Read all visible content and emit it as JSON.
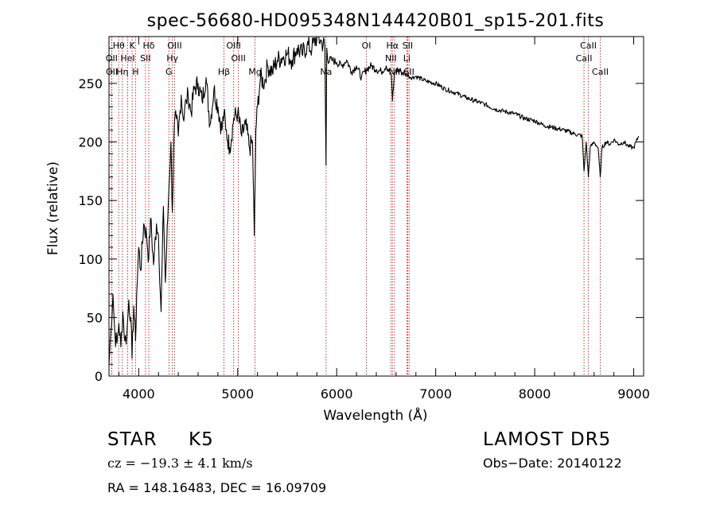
{
  "chart_data": {
    "type": "line",
    "title": "spec-56680-HD095348N144420B01_sp15-201.fits",
    "xlabel": "Wavelength (Å)",
    "ylabel": "Flux (relative)",
    "xlim": [
      3700,
      9100
    ],
    "ylim": [
      0,
      290
    ],
    "x_ticks": [
      4000,
      5000,
      6000,
      7000,
      8000,
      9000
    ],
    "y_ticks": [
      0,
      50,
      100,
      150,
      200,
      250
    ],
    "grid": false,
    "series": [
      {
        "x": [
          3700,
          3720,
          3740,
          3760,
          3780,
          3800,
          3820,
          3840,
          3860,
          3880,
          3900,
          3920,
          3933,
          3950,
          3968,
          3980,
          4000,
          4020,
          4050,
          4080,
          4102,
          4120,
          4150,
          4180,
          4200,
          4226,
          4250,
          4270,
          4300,
          4325,
          4340,
          4360,
          4380,
          4400,
          4430,
          4450,
          4480,
          4500,
          4530,
          4560,
          4600,
          4640,
          4680,
          4720,
          4760,
          4800,
          4840,
          4861,
          4880,
          4920,
          4960,
          5000,
          5040,
          5080,
          5120,
          5150,
          5168,
          5175,
          5183,
          5200,
          5230,
          5270,
          5300,
          5350,
          5400,
          5450,
          5500,
          5550,
          5600,
          5650,
          5700,
          5750,
          5800,
          5850,
          5880,
          5892,
          5896,
          5900,
          5910,
          5950,
          6000,
          6050,
          6100,
          6150,
          6200,
          6250,
          6300,
          6350,
          6400,
          6450,
          6500,
          6550,
          6563,
          6580,
          6600,
          6650,
          6700,
          6750,
          6800,
          6900,
          7000,
          7100,
          7200,
          7300,
          7400,
          7500,
          7600,
          7700,
          7800,
          7900,
          8000,
          8100,
          8200,
          8300,
          8400,
          8480,
          8498,
          8520,
          8542,
          8560,
          8600,
          8640,
          8662,
          8680,
          8720,
          8760,
          8800,
          8850,
          8900,
          8950,
          9000,
          9050
        ],
        "y": [
          10,
          40,
          70,
          35,
          28,
          45,
          25,
          55,
          30,
          35,
          65,
          50,
          15,
          60,
          30,
          70,
          110,
          90,
          130,
          120,
          100,
          135,
          95,
          130,
          120,
          55,
          145,
          80,
          150,
          200,
          140,
          215,
          220,
          205,
          240,
          220,
          235,
          240,
          225,
          245,
          250,
          235,
          255,
          215,
          245,
          230,
          210,
          225,
          210,
          195,
          220,
          225,
          205,
          215,
          195,
          200,
          120,
          160,
          210,
          230,
          255,
          250,
          265,
          260,
          270,
          272,
          275,
          270,
          280,
          275,
          282,
          280,
          290,
          285,
          282,
          180,
          230,
          280,
          270,
          270,
          268,
          265,
          270,
          260,
          265,
          255,
          262,
          265,
          262,
          260,
          265,
          258,
          235,
          255,
          262,
          260,
          258,
          255,
          256,
          252,
          250,
          245,
          242,
          238,
          235,
          232,
          228,
          226,
          224,
          220,
          218,
          214,
          212,
          210,
          207,
          205,
          175,
          200,
          170,
          195,
          200,
          195,
          170,
          195,
          200,
          198,
          202,
          198,
          200,
          196,
          195,
          205
        ]
      }
    ],
    "spectral_lines": [
      {
        "label": "Hθ",
        "x": 3798,
        "row": 1
      },
      {
        "label": "K",
        "x": 3934,
        "row": 1
      },
      {
        "label": "Hδ",
        "x": 4102,
        "row": 1
      },
      {
        "label": "OIII",
        "x": 4363,
        "row": 1
      },
      {
        "label": "OIII",
        "x": 4959,
        "row": 1
      },
      {
        "label": "OI",
        "x": 6300,
        "row": 1
      },
      {
        "label": "Hα",
        "x": 6563,
        "row": 1
      },
      {
        "label": "SII",
        "x": 6717,
        "row": 1
      },
      {
        "label": "CaII",
        "x": 8542,
        "row": 1
      },
      {
        "label": "OII",
        "x": 3727,
        "row": 2
      },
      {
        "label": "HeI",
        "x": 3889,
        "row": 2
      },
      {
        "label": "SII",
        "x": 4069,
        "row": 2
      },
      {
        "label": "Hγ",
        "x": 4340,
        "row": 2
      },
      {
        "label": "OIII",
        "x": 5007,
        "row": 2
      },
      {
        "label": "NII",
        "x": 6548,
        "row": 2
      },
      {
        "label": "Li",
        "x": 6708,
        "row": 2
      },
      {
        "label": "CaII",
        "x": 8498,
        "row": 2
      },
      {
        "label": "OII",
        "x": 3729,
        "row": 3
      },
      {
        "label": "Hη",
        "x": 3835,
        "row": 3
      },
      {
        "label": "H",
        "x": 3968,
        "row": 3
      },
      {
        "label": "G",
        "x": 4305,
        "row": 3
      },
      {
        "label": "Hβ",
        "x": 4861,
        "row": 3
      },
      {
        "label": "Mg",
        "x": 5175,
        "row": 3
      },
      {
        "label": "Na",
        "x": 5893,
        "row": 3
      },
      {
        "label": "NII",
        "x": 6584,
        "row": 3
      },
      {
        "label": "SII",
        "x": 6731,
        "row": 3
      },
      {
        "label": "CaII",
        "x": 8662,
        "row": 3
      }
    ]
  },
  "info": {
    "object_type": "STAR",
    "subclass": "K5",
    "survey": "LAMOST DR5",
    "redshift": "cz = −19.3 ± 4.1 km/s",
    "obs_date": "Obs−Date: 20140122",
    "coords": "RA = 148.16483, DEC =  16.09709"
  },
  "colors": {
    "line_marker": "#b22222",
    "spectrum": "#000000"
  }
}
